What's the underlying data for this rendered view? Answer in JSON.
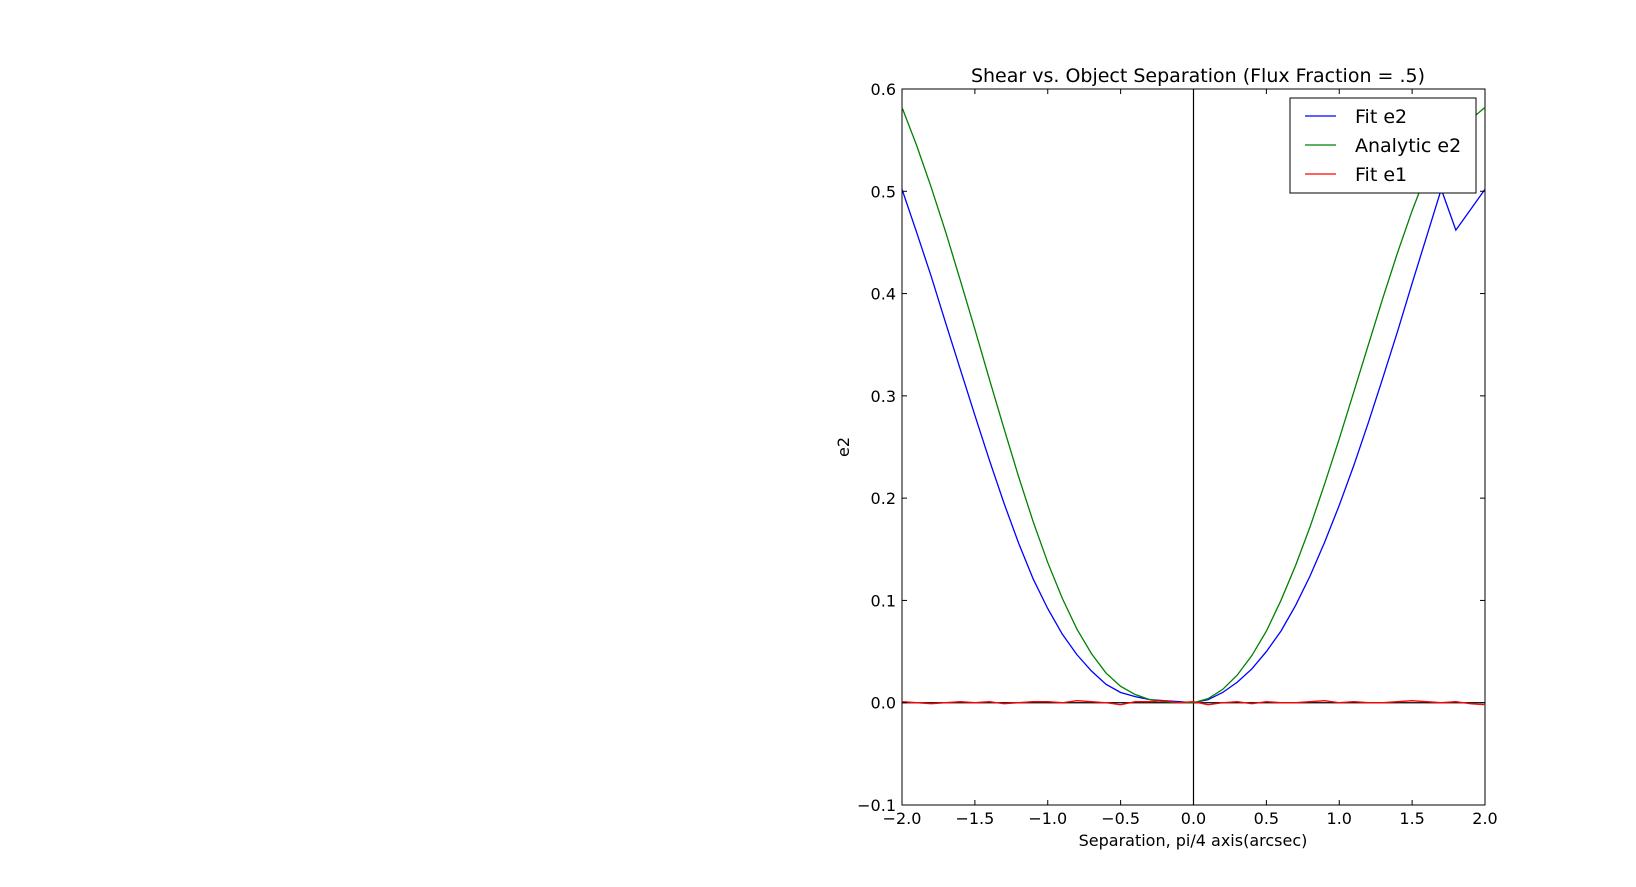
{
  "chart_data": {
    "type": "line",
    "title": "Shear vs. Object Separation (Flux Fraction = .5)",
    "xlabel": "Separation, pi/4 axis(arcsec)",
    "ylabel": "e2",
    "xlim": [
      -2.0,
      2.0
    ],
    "ylim": [
      -0.1,
      0.6
    ],
    "xticks": [
      "−2.0",
      "−1.5",
      "−1.0",
      "−0.5",
      "0.0",
      "0.5",
      "1.0",
      "1.5",
      "2.0"
    ],
    "yticks": [
      "−0.1",
      "0.0",
      "0.1",
      "0.2",
      "0.3",
      "0.4",
      "0.5",
      "0.6"
    ],
    "grid": false,
    "legend": "top-right",
    "reference_lines": {
      "vertical_x": 0.0,
      "horizontal_y": 0.0
    },
    "x": [
      -2.0,
      -1.9,
      -1.8,
      -1.7,
      -1.6,
      -1.5,
      -1.4,
      -1.3,
      -1.2,
      -1.1,
      -1.0,
      -0.9,
      -0.8,
      -0.7,
      -0.6,
      -0.5,
      -0.4,
      -0.3,
      -0.2,
      -0.1,
      0.0,
      0.1,
      0.2,
      0.3,
      0.4,
      0.5,
      0.6,
      0.7,
      0.8,
      0.9,
      1.0,
      1.1,
      1.2,
      1.3,
      1.4,
      1.5,
      1.6,
      1.7,
      1.8,
      1.9,
      2.0
    ],
    "series": [
      {
        "name": "Fit e2",
        "color": "#0000ff",
        "values": [
          0.502,
          0.46,
          0.417,
          0.371,
          0.326,
          0.281,
          0.237,
          0.195,
          0.156,
          0.121,
          0.092,
          0.067,
          0.047,
          0.031,
          0.018,
          0.01,
          0.006,
          0.003,
          0.002,
          0.001,
          0.0,
          0.003,
          0.01,
          0.02,
          0.033,
          0.05,
          0.07,
          0.095,
          0.124,
          0.157,
          0.193,
          0.232,
          0.274,
          0.318,
          0.363,
          0.41,
          0.456,
          0.502,
          0.462,
          0.482,
          0.502
        ]
      },
      {
        "name": "Analytic e2",
        "color": "#008000",
        "values": [
          0.582,
          0.545,
          0.504,
          0.46,
          0.413,
          0.365,
          0.316,
          0.268,
          0.221,
          0.177,
          0.137,
          0.102,
          0.072,
          0.048,
          0.029,
          0.016,
          0.008,
          0.003,
          0.001,
          0.0,
          0.0,
          0.004,
          0.013,
          0.027,
          0.046,
          0.07,
          0.1,
          0.134,
          0.172,
          0.214,
          0.258,
          0.304,
          0.35,
          0.396,
          0.44,
          0.481,
          0.518,
          0.551,
          0.575,
          0.57,
          0.582
        ]
      },
      {
        "name": "Fit e1",
        "color": "#ff0000",
        "values": [
          0.001,
          0.0,
          -0.001,
          0.0,
          0.001,
          0.0,
          0.001,
          -0.001,
          0.0,
          0.001,
          0.001,
          0.0,
          0.002,
          0.001,
          0.0,
          -0.002,
          0.001,
          0.001,
          0.002,
          0.0,
          0.001,
          -0.002,
          0.0,
          0.001,
          -0.001,
          0.001,
          0.0,
          0.0,
          0.001,
          0.002,
          0.0,
          0.001,
          0.0,
          0.0,
          0.001,
          0.002,
          0.001,
          0.0,
          0.001,
          -0.001,
          -0.002
        ]
      }
    ]
  }
}
